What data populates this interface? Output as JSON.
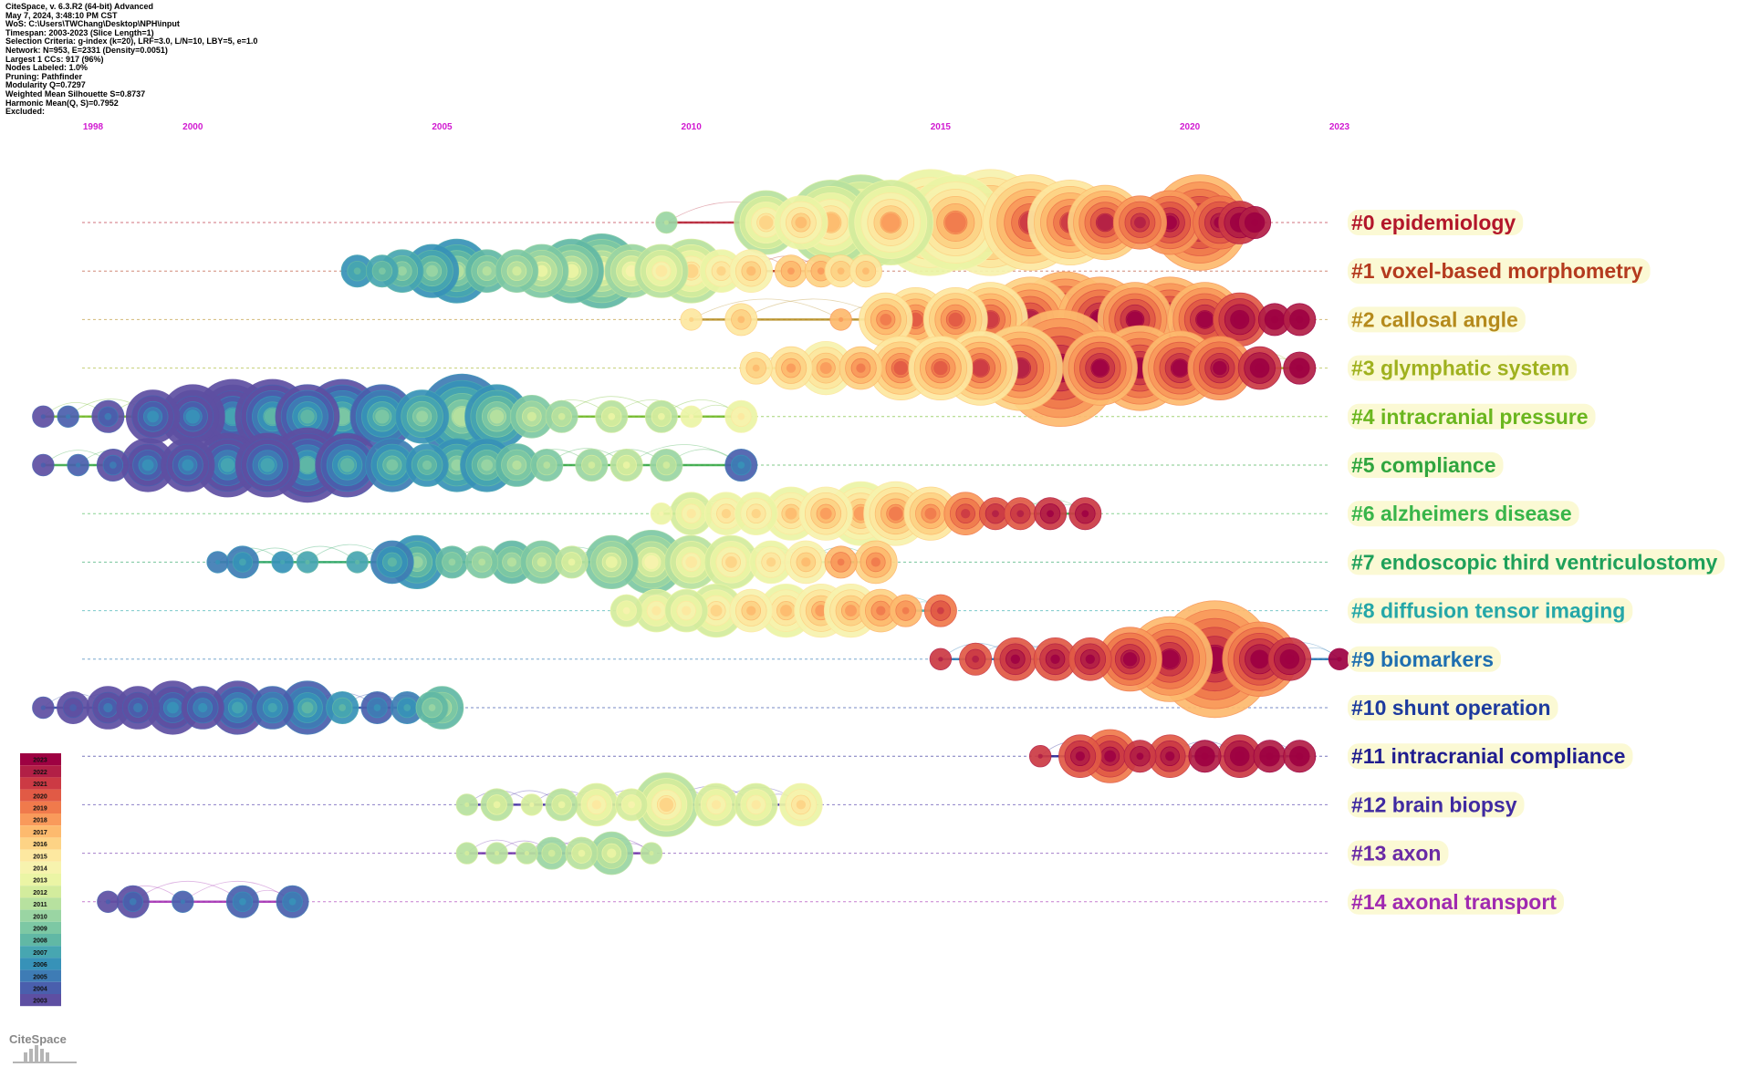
{
  "header": {
    "lines": [
      "CiteSpace, v. 6.3.R2 (64-bit) Advanced",
      "May 7, 2024, 3:48:10 PM CST",
      "WoS: C:\\Users\\TWChang\\Desktop\\NPH\\input",
      "Timespan: 2003-2023 (Slice Length=1)",
      "Selection Criteria: g-index (k=20), LRF=3.0, L/N=10, LBY=5, e=1.0",
      "Network: N=953, E=2331 (Density=0.0051)",
      "Largest 1 CCs: 917 (96%)",
      "Nodes Labeled: 1.0%",
      "Pruning: Pathfinder",
      "Modularity Q=0.7297",
      "Weighted Mean Silhouette S=0.8737",
      "Harmonic Mean(Q, S)=0.7952",
      "Excluded:"
    ]
  },
  "logo": {
    "text": "CiteSpace"
  },
  "chart_data": {
    "type": "timeline",
    "x_axis_years": [
      "1998",
      "2000",
      "2005",
      "2010",
      "2015",
      "2020",
      "2023"
    ],
    "xlim": [
      1998,
      2023
    ],
    "clusters": [
      {
        "label": "#0 epidemiology",
        "color": "#b3162a",
        "span": [
          2009.5,
          2021.3
        ],
        "nodes": [
          [
            2009.5,
            1,
            2010
          ],
          [
            2011.5,
            5,
            2015
          ],
          [
            2012.2,
            4,
            2016
          ],
          [
            2012.8,
            7,
            2016
          ],
          [
            2013.4,
            8,
            2016
          ],
          [
            2014.0,
            7,
            2017
          ],
          [
            2014.8,
            9,
            2018
          ],
          [
            2015.3,
            8,
            2018
          ],
          [
            2016.0,
            9,
            2019
          ],
          [
            2016.8,
            8,
            2020
          ],
          [
            2017.6,
            7,
            2020
          ],
          [
            2018.3,
            6,
            2021
          ],
          [
            2019.0,
            4,
            2021
          ],
          [
            2019.6,
            5,
            2022
          ],
          [
            2020.2,
            8,
            2022
          ],
          [
            2020.6,
            4,
            2022
          ],
          [
            2021.0,
            3,
            2023
          ],
          [
            2021.3,
            2,
            2023
          ]
        ]
      },
      {
        "label": "#1 voxel-based morphometry",
        "color": "#b43a1e",
        "span": [
          2003.3,
          2013.5
        ],
        "nodes": [
          [
            2003.3,
            2,
            2007
          ],
          [
            2003.8,
            2,
            2008
          ],
          [
            2004.2,
            3,
            2009
          ],
          [
            2004.8,
            4,
            2009
          ],
          [
            2005.3,
            5,
            2010
          ],
          [
            2005.9,
            3,
            2010
          ],
          [
            2006.5,
            3,
            2011
          ],
          [
            2007.0,
            4,
            2012
          ],
          [
            2007.6,
            5,
            2012
          ],
          [
            2008.2,
            6,
            2013
          ],
          [
            2008.8,
            4,
            2013
          ],
          [
            2009.4,
            4,
            2014
          ],
          [
            2010.0,
            5,
            2015
          ],
          [
            2010.6,
            3,
            2015
          ],
          [
            2011.2,
            3,
            2016
          ],
          [
            2012.0,
            2,
            2017
          ],
          [
            2012.6,
            2,
            2017
          ],
          [
            2013.0,
            2,
            2016
          ],
          [
            2013.5,
            2,
            2016
          ]
        ]
      },
      {
        "label": "#2 callosal angle",
        "color": "#b58a1c",
        "span": [
          2010.0,
          2022.2
        ],
        "nodes": [
          [
            2010.0,
            1,
            2015
          ],
          [
            2011.0,
            2,
            2016
          ],
          [
            2013.0,
            1,
            2017
          ],
          [
            2013.9,
            4,
            2018
          ],
          [
            2014.5,
            5,
            2019
          ],
          [
            2015.3,
            5,
            2019
          ],
          [
            2016.0,
            6,
            2020
          ],
          [
            2016.8,
            7,
            2021
          ],
          [
            2017.5,
            8,
            2022
          ],
          [
            2018.2,
            7,
            2022
          ],
          [
            2018.9,
            6,
            2022
          ],
          [
            2019.6,
            7,
            2022
          ],
          [
            2020.3,
            6,
            2022
          ],
          [
            2021.0,
            4,
            2023
          ],
          [
            2021.7,
            2,
            2023
          ],
          [
            2022.2,
            2,
            2023
          ]
        ]
      },
      {
        "label": "#3 glymphatic system",
        "color": "#9fb11e",
        "span": [
          2011.3,
          2022.2
        ],
        "nodes": [
          [
            2011.3,
            2,
            2016
          ],
          [
            2012.0,
            3,
            2017
          ],
          [
            2012.7,
            4,
            2017
          ],
          [
            2013.4,
            3,
            2018
          ],
          [
            2014.2,
            5,
            2019
          ],
          [
            2015.0,
            5,
            2019
          ],
          [
            2015.8,
            6,
            2020
          ],
          [
            2016.6,
            7,
            2021
          ],
          [
            2017.4,
            10,
            2022
          ],
          [
            2018.2,
            6,
            2022
          ],
          [
            2019.0,
            7,
            2022
          ],
          [
            2019.8,
            6,
            2022
          ],
          [
            2020.6,
            5,
            2022
          ],
          [
            2021.4,
            3,
            2023
          ],
          [
            2022.2,
            2,
            2023
          ]
        ]
      },
      {
        "label": "#4 intracranial pressure",
        "color": "#6ab61e",
        "span": [
          1997.0,
          2011.0
        ],
        "nodes": [
          [
            1997.0,
            1,
            2003
          ],
          [
            1997.5,
            1,
            2004
          ],
          [
            1998.3,
            2,
            2004
          ],
          [
            1999.2,
            4,
            2005
          ],
          [
            2000.0,
            5,
            2005
          ],
          [
            2000.8,
            6,
            2006
          ],
          [
            2001.6,
            6,
            2007
          ],
          [
            2002.3,
            5,
            2007
          ],
          [
            2003.0,
            6,
            2008
          ],
          [
            2003.8,
            5,
            2008
          ],
          [
            2004.6,
            4,
            2009
          ],
          [
            2005.4,
            7,
            2010
          ],
          [
            2006.1,
            5,
            2010
          ],
          [
            2006.8,
            3,
            2011
          ],
          [
            2007.4,
            2,
            2011
          ],
          [
            2008.4,
            2,
            2012
          ],
          [
            2009.4,
            2,
            2012
          ],
          [
            2010.0,
            1,
            2013
          ],
          [
            2011.0,
            2,
            2014
          ]
        ]
      },
      {
        "label": "#5 compliance",
        "color": "#2fa53e",
        "span": [
          1997.0,
          2011.0
        ],
        "nodes": [
          [
            1997.0,
            1,
            2003
          ],
          [
            1997.7,
            1,
            2004
          ],
          [
            1998.4,
            2,
            2004
          ],
          [
            1999.1,
            4,
            2005
          ],
          [
            1999.9,
            4,
            2005
          ],
          [
            2000.7,
            5,
            2006
          ],
          [
            2001.5,
            5,
            2006
          ],
          [
            2002.3,
            6,
            2007
          ],
          [
            2003.1,
            5,
            2007
          ],
          [
            2004.0,
            4,
            2008
          ],
          [
            2004.7,
            3,
            2008
          ],
          [
            2005.3,
            4,
            2009
          ],
          [
            2005.9,
            4,
            2009
          ],
          [
            2006.5,
            3,
            2010
          ],
          [
            2007.1,
            2,
            2010
          ],
          [
            2008.0,
            2,
            2011
          ],
          [
            2008.7,
            2,
            2012
          ],
          [
            2009.5,
            2,
            2011
          ],
          [
            2011.0,
            2,
            2005
          ]
        ]
      },
      {
        "label": "#6 alzheimers disease",
        "color": "#38b54a",
        "span": [
          2009.4,
          2017.9
        ],
        "nodes": [
          [
            2009.4,
            1,
            2013
          ],
          [
            2010.0,
            3,
            2014
          ],
          [
            2010.7,
            3,
            2015
          ],
          [
            2011.3,
            3,
            2015
          ],
          [
            2012.0,
            4,
            2016
          ],
          [
            2012.7,
            4,
            2017
          ],
          [
            2013.4,
            5,
            2017
          ],
          [
            2014.1,
            5,
            2018
          ],
          [
            2014.8,
            4,
            2018
          ],
          [
            2015.5,
            3,
            2020
          ],
          [
            2016.1,
            2,
            2021
          ],
          [
            2016.6,
            2,
            2021
          ],
          [
            2017.2,
            2,
            2022
          ],
          [
            2017.9,
            2,
            2022
          ]
        ]
      },
      {
        "label": "#7 endoscopic third ventriculostomy",
        "color": "#1ea05a",
        "span": [
          2000.5,
          2013.7
        ],
        "nodes": [
          [
            2000.5,
            1,
            2005
          ],
          [
            2001.0,
            2,
            2006
          ],
          [
            2001.8,
            1,
            2006
          ],
          [
            2002.3,
            1,
            2007
          ],
          [
            2003.3,
            1,
            2007
          ],
          [
            2004.0,
            3,
            2007
          ],
          [
            2004.5,
            4,
            2009
          ],
          [
            2005.2,
            2,
            2009
          ],
          [
            2005.8,
            2,
            2010
          ],
          [
            2006.4,
            3,
            2010
          ],
          [
            2007.0,
            3,
            2011
          ],
          [
            2007.6,
            2,
            2012
          ],
          [
            2008.4,
            4,
            2012
          ],
          [
            2009.2,
            5,
            2013
          ],
          [
            2010.0,
            4,
            2014
          ],
          [
            2010.8,
            4,
            2015
          ],
          [
            2011.6,
            3,
            2015
          ],
          [
            2012.3,
            3,
            2016
          ],
          [
            2013.0,
            2,
            2018
          ],
          [
            2013.7,
            3,
            2018
          ]
        ]
      },
      {
        "label": "#8 diffusion tensor imaging",
        "color": "#25a7a8",
        "span": [
          2008.7,
          2015.0
        ],
        "nodes": [
          [
            2008.7,
            2,
            2013
          ],
          [
            2009.3,
            3,
            2014
          ],
          [
            2009.9,
            3,
            2014
          ],
          [
            2010.5,
            4,
            2015
          ],
          [
            2011.2,
            3,
            2016
          ],
          [
            2011.9,
            4,
            2016
          ],
          [
            2012.6,
            4,
            2017
          ],
          [
            2013.2,
            4,
            2017
          ],
          [
            2013.8,
            3,
            2018
          ],
          [
            2014.3,
            2,
            2018
          ],
          [
            2015.0,
            2,
            2020
          ]
        ]
      },
      {
        "label": "#9 biomarkers",
        "color": "#1f6fb0",
        "span": [
          2015.0,
          2023.0
        ],
        "nodes": [
          [
            2015.0,
            1,
            2021
          ],
          [
            2015.7,
            2,
            2021
          ],
          [
            2016.5,
            3,
            2022
          ],
          [
            2017.3,
            3,
            2022
          ],
          [
            2018.0,
            3,
            2022
          ],
          [
            2018.8,
            5,
            2022
          ],
          [
            2019.6,
            7,
            2022
          ],
          [
            2020.5,
            10,
            2022
          ],
          [
            2021.4,
            6,
            2023
          ],
          [
            2022.0,
            3,
            2023
          ],
          [
            2023.0,
            1,
            2023
          ]
        ]
      },
      {
        "label": "#10 shunt operation",
        "color": "#1d3a9e",
        "span": [
          1997.0,
          2005.0
        ],
        "nodes": [
          [
            1997.0,
            1,
            2003
          ],
          [
            1997.6,
            2,
            2003
          ],
          [
            1998.3,
            3,
            2004
          ],
          [
            1998.9,
            3,
            2004
          ],
          [
            1999.6,
            4,
            2005
          ],
          [
            2000.2,
            3,
            2005
          ],
          [
            2000.9,
            4,
            2006
          ],
          [
            2001.6,
            3,
            2006
          ],
          [
            2002.3,
            4,
            2007
          ],
          [
            2003.0,
            2,
            2007
          ],
          [
            2003.7,
            2,
            2005
          ],
          [
            2004.3,
            2,
            2006
          ],
          [
            2004.8,
            2,
            2009
          ],
          [
            2005.0,
            3,
            2010
          ]
        ]
      },
      {
        "label": "#11 intracranial compliance",
        "color": "#201d8f",
        "span": [
          2017.0,
          2022.2
        ],
        "nodes": [
          [
            2017.0,
            1,
            2021
          ],
          [
            2017.8,
            3,
            2022
          ],
          [
            2018.4,
            4,
            2022
          ],
          [
            2019.0,
            2,
            2022
          ],
          [
            2019.6,
            3,
            2022
          ],
          [
            2020.3,
            2,
            2023
          ],
          [
            2021.0,
            3,
            2023
          ],
          [
            2021.6,
            2,
            2023
          ],
          [
            2022.2,
            2,
            2023
          ]
        ]
      },
      {
        "label": "#12 brain biopsy",
        "color": "#3f2aa1",
        "span": [
          2005.5,
          2012.2
        ],
        "nodes": [
          [
            2005.5,
            1,
            2011
          ],
          [
            2006.1,
            2,
            2012
          ],
          [
            2006.8,
            1,
            2012
          ],
          [
            2007.4,
            2,
            2012
          ],
          [
            2008.1,
            3,
            2014
          ],
          [
            2008.8,
            2,
            2013
          ],
          [
            2009.5,
            5,
            2015
          ],
          [
            2010.5,
            3,
            2014
          ],
          [
            2011.3,
            3,
            2014
          ],
          [
            2012.2,
            3,
            2015
          ]
        ]
      },
      {
        "label": "#13 axon",
        "color": "#6a2aa5",
        "span": [
          2005.5,
          2009.2
        ],
        "nodes": [
          [
            2005.5,
            1,
            2011
          ],
          [
            2006.1,
            1,
            2011
          ],
          [
            2006.7,
            1,
            2011
          ],
          [
            2007.2,
            2,
            2011
          ],
          [
            2007.8,
            2,
            2012
          ],
          [
            2008.4,
            3,
            2012
          ],
          [
            2009.2,
            1,
            2011
          ]
        ]
      },
      {
        "label": "#14 axonal transport",
        "color": "#a02ab0",
        "span": [
          1998.3,
          2002.0
        ],
        "nodes": [
          [
            1998.3,
            1,
            2003
          ],
          [
            1998.8,
            2,
            2004
          ],
          [
            1999.8,
            1,
            2004
          ],
          [
            2001.0,
            2,
            2005
          ],
          [
            2002.0,
            2,
            2005
          ]
        ]
      }
    ],
    "legend_years": [
      "2023",
      "2022",
      "2021",
      "2020",
      "2019",
      "2018",
      "2017",
      "2016",
      "2015",
      "2014",
      "2013",
      "2012",
      "2011",
      "2010",
      "2009",
      "2008",
      "2007",
      "2006",
      "2005",
      "2004",
      "2003"
    ]
  }
}
